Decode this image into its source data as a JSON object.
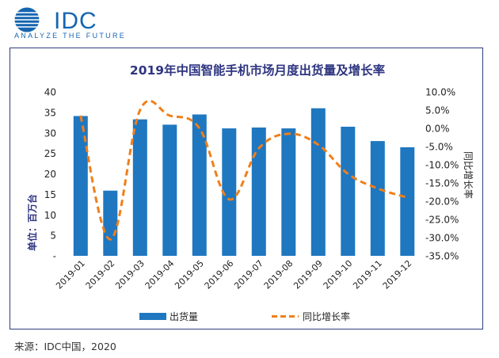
{
  "brand": {
    "logo_text": "IDC",
    "tagline": "ANALYZE THE FUTURE",
    "accent_color": "#1565b0"
  },
  "source": "来源：IDC中国，2020",
  "chart_data": {
    "type": "bar+line",
    "title": "2019年中国智能手机市场月度出货量及增长率",
    "categories": [
      "2019-01",
      "2019-02",
      "2019-03",
      "2019-04",
      "2019-05",
      "2019-06",
      "2019-07",
      "2019-08",
      "2019-09",
      "2019-10",
      "2019-11",
      "2019-12"
    ],
    "series": [
      {
        "name": "出货量",
        "type": "bar",
        "axis": "left",
        "color": "#1f77c0",
        "values": [
          34.1,
          15.9,
          33.3,
          32.0,
          34.5,
          31.1,
          31.3,
          31.1,
          36.0,
          31.5,
          28.0,
          26.5
        ]
      },
      {
        "name": "同比增长率",
        "type": "line",
        "axis": "right",
        "color": "#f07f1a",
        "style": "dashed",
        "values": [
          3.5,
          -30.5,
          5.0,
          3.5,
          0.0,
          -19.5,
          -5.5,
          -1.5,
          -4.5,
          -12.5,
          -16.5,
          -19.0
        ]
      }
    ],
    "ylabel_left": "单位：百万台",
    "ylabel_right": "同比增长率",
    "ylim_left": [
      0,
      40
    ],
    "ylim_right": [
      -35,
      10
    ],
    "yticks_left": [
      "-",
      "5",
      "10",
      "15",
      "20",
      "25",
      "30",
      "35",
      "40"
    ],
    "yticks_right": [
      "-35.0%",
      "-30.0%",
      "-25.0%",
      "-20.0%",
      "-15.0%",
      "-10.0%",
      "-5.0%",
      "0.0%",
      "5.0%",
      "10.0%"
    ],
    "legend_position": "bottom",
    "grid": false
  }
}
